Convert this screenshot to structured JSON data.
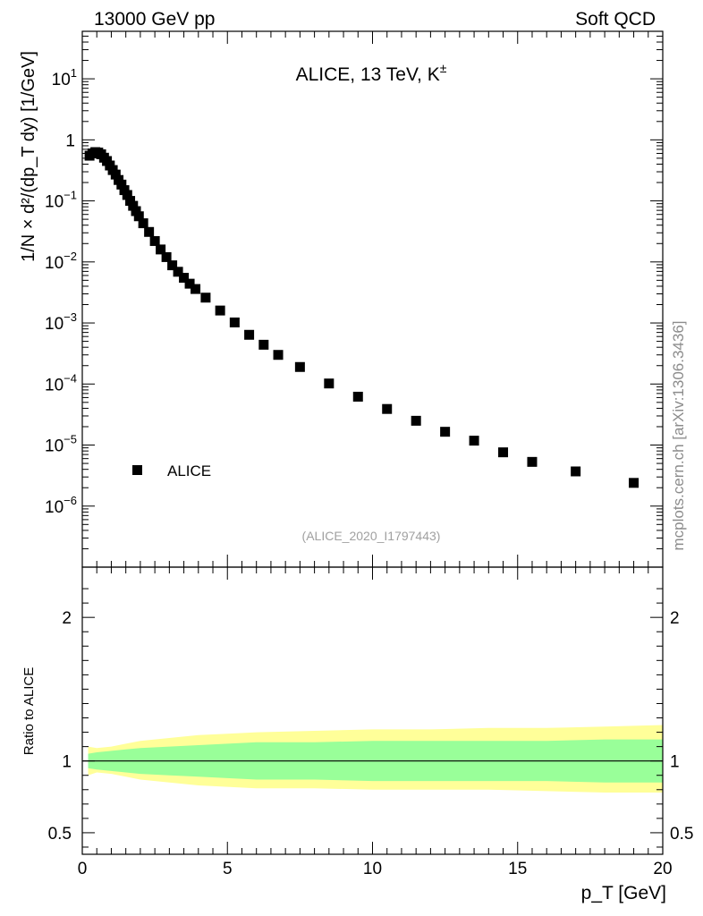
{
  "header": {
    "left": "13000 GeV pp",
    "right": "Soft QCD"
  },
  "side_label": "mcplots.cern.ch [arXiv:1306.3436]",
  "chart_data": [
    {
      "type": "scatter",
      "title": "ALICE, 13 TeV, K",
      "title_sup": "±",
      "ylabel": "1/N × d²/(dp_T dy) [1/GeV]",
      "xlabel": "p_T [GeV]",
      "xlim": [
        0,
        20
      ],
      "ylim_log": [
        1e-07,
        60
      ],
      "yscale": "log",
      "legend": "ALICE",
      "legend_position": "bottom-left",
      "analysis_tag": "(ALICE_2020_I1797443)",
      "ytick_labels": [
        {
          "base": "10",
          "exp": "1",
          "value": 10
        },
        {
          "base": "1",
          "exp": "",
          "value": 1
        },
        {
          "base": "10",
          "exp": "−1",
          "value": 0.1
        },
        {
          "base": "10",
          "exp": "−2",
          "value": 0.01
        },
        {
          "base": "10",
          "exp": "−3",
          "value": 0.001
        },
        {
          "base": "10",
          "exp": "−4",
          "value": 0.0001
        },
        {
          "base": "10",
          "exp": "−5",
          "value": 1e-05
        },
        {
          "base": "10",
          "exp": "−6",
          "value": 1e-06
        }
      ],
      "series": [
        {
          "name": "ALICE",
          "x": [
            0.25,
            0.35,
            0.45,
            0.55,
            0.65,
            0.75,
            0.85,
            0.95,
            1.05,
            1.15,
            1.25,
            1.35,
            1.45,
            1.55,
            1.65,
            1.75,
            1.85,
            1.95,
            2.1,
            2.3,
            2.5,
            2.7,
            2.9,
            3.1,
            3.3,
            3.5,
            3.7,
            3.9,
            4.25,
            4.75,
            5.25,
            5.75,
            6.25,
            6.75,
            7.5,
            8.5,
            9.5,
            10.5,
            11.5,
            12.5,
            13.5,
            14.5,
            15.5,
            17.0,
            19.0
          ],
          "y": [
            0.55,
            0.6,
            0.63,
            0.62,
            0.58,
            0.51,
            0.45,
            0.38,
            0.32,
            0.27,
            0.22,
            0.185,
            0.15,
            0.125,
            0.1,
            0.083,
            0.068,
            0.056,
            0.043,
            0.031,
            0.022,
            0.016,
            0.012,
            0.0088,
            0.0069,
            0.0055,
            0.0044,
            0.0036,
            0.0026,
            0.0016,
            0.00102,
            0.00064,
            0.00044,
            0.0003,
            0.00019,
            0.000102,
            6.2e-05,
            3.9e-05,
            2.5e-05,
            1.65e-05,
            1.18e-05,
            7.6e-06,
            5.3e-06,
            3.7e-06,
            2.4e-06
          ]
        }
      ]
    },
    {
      "type": "area",
      "ylabel": "Ratio to ALICE",
      "xlim": [
        0,
        20
      ],
      "ylim": [
        0.35,
        2.35
      ],
      "ytick_labels": [
        "2",
        "1",
        "0.5"
      ],
      "xtick_labels": [
        "0",
        "5",
        "10",
        "15",
        "20"
      ],
      "reference_line": 1,
      "colors": {
        "stat_band": "#99ff99",
        "total_band": "#ffff99"
      },
      "bands": [
        {
          "name": "stat",
          "x": [
            0.2,
            0.5,
            1.0,
            1.5,
            2.0,
            3.0,
            4.0,
            5.0,
            6.0,
            8.0,
            10.0,
            12.0,
            14.0,
            16.0,
            18.0,
            20.0
          ],
          "lower": [
            0.95,
            0.94,
            0.93,
            0.92,
            0.91,
            0.9,
            0.89,
            0.88,
            0.87,
            0.87,
            0.86,
            0.86,
            0.86,
            0.86,
            0.85,
            0.85
          ],
          "upper": [
            1.05,
            1.06,
            1.07,
            1.08,
            1.09,
            1.1,
            1.11,
            1.12,
            1.13,
            1.13,
            1.14,
            1.14,
            1.14,
            1.14,
            1.15,
            1.15
          ]
        },
        {
          "name": "total",
          "x": [
            0.2,
            0.5,
            1.0,
            1.5,
            2.0,
            3.0,
            4.0,
            5.0,
            6.0,
            8.0,
            10.0,
            12.0,
            14.0,
            16.0,
            18.0,
            20.0
          ],
          "lower": [
            0.9,
            0.92,
            0.91,
            0.89,
            0.87,
            0.85,
            0.83,
            0.82,
            0.81,
            0.81,
            0.8,
            0.8,
            0.8,
            0.79,
            0.78,
            0.78
          ],
          "upper": [
            1.1,
            1.09,
            1.1,
            1.12,
            1.14,
            1.16,
            1.18,
            1.19,
            1.2,
            1.21,
            1.22,
            1.22,
            1.23,
            1.23,
            1.24,
            1.25
          ]
        }
      ]
    }
  ]
}
